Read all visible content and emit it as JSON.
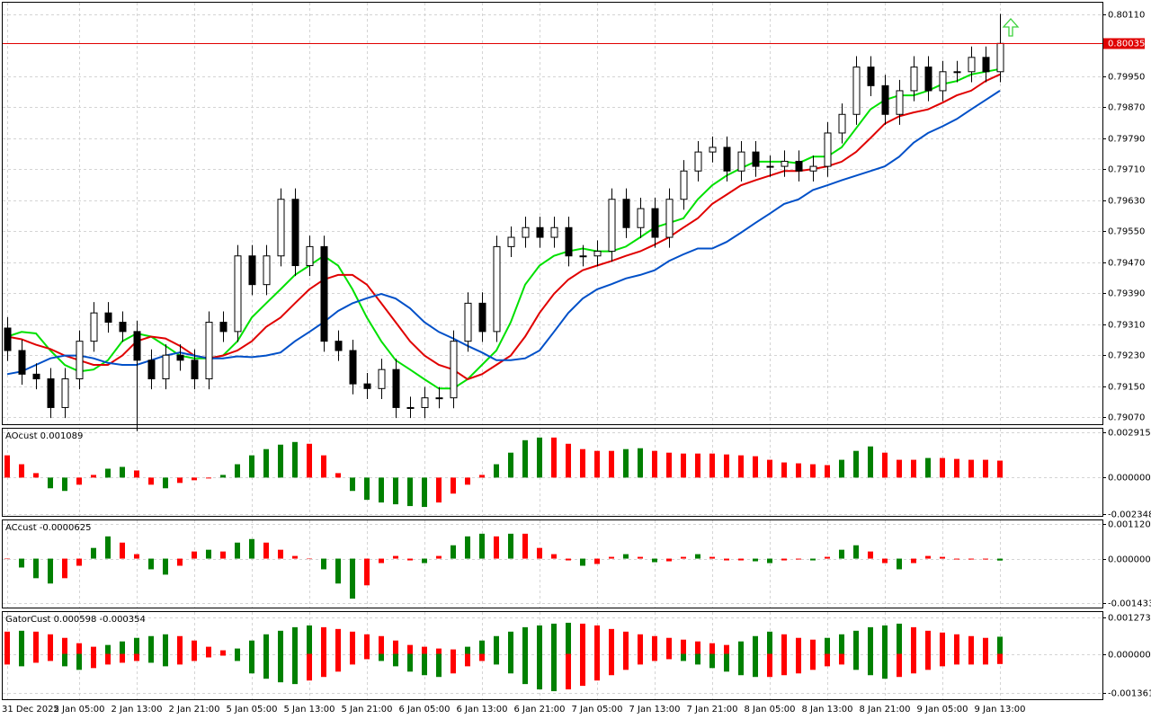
{
  "chart_data": [
    {
      "type": "candlestick",
      "categories": [
        "31 Dec 2025",
        null,
        null,
        null,
        null,
        "2 Jan 05:00",
        null,
        null,
        null,
        "2 Jan 13:00",
        null,
        null,
        null,
        "2 Jan 21:00",
        null,
        null,
        null,
        "5 Jan 05:00",
        null,
        null,
        null,
        "5 Jan 13:00",
        null,
        null,
        null,
        "5 Jan 21:00",
        null,
        null,
        null,
        "6 Jan 05:00",
        null,
        null,
        null,
        "6 Jan 13:00",
        null,
        null,
        null,
        "6 Jan 21:00",
        null,
        null,
        null,
        "7 Jan 05:00",
        null,
        null,
        null,
        "7 Jan 13:00",
        null,
        null,
        null,
        "7 Jan 21:00",
        null,
        null,
        null,
        "8 Jan 05:00",
        null,
        null,
        null,
        "8 Jan 13:00",
        null,
        null,
        null,
        "8 Jan 21:00",
        null,
        null,
        null,
        "9 Jan 05:00",
        null,
        null,
        null,
        "9 Jan 13:00"
      ],
      "open": [
        0.793,
        0.79242,
        0.79181,
        0.79169,
        0.79095,
        0.79169,
        0.79266,
        0.79339,
        0.79315,
        0.79291,
        0.79217,
        0.79169,
        0.7923,
        0.79217,
        0.79169,
        0.79315,
        0.79291,
        0.79486,
        0.79412,
        0.79486,
        0.79632,
        0.79461,
        0.7951,
        0.79266,
        0.79242,
        0.79156,
        0.79144,
        0.79193,
        0.79095,
        0.79095,
        0.7912,
        0.7912,
        0.79266,
        0.79364,
        0.79291,
        0.7951,
        0.79534,
        0.79559,
        0.79534,
        0.79559,
        0.79486,
        0.79486,
        0.79498,
        0.79632,
        0.79559,
        0.79608,
        0.79534,
        0.79632,
        0.79705,
        0.79754,
        0.79766,
        0.79705,
        0.79754,
        0.79717,
        0.79717,
        0.7973,
        0.79705,
        0.79717,
        0.79803,
        0.79851,
        0.79973,
        0.79925,
        0.79851,
        0.79912,
        0.79973,
        0.79912,
        0.79961,
        0.79961,
        0.79998,
        0.79961
      ],
      "high": [
        0.79328,
        0.7927,
        0.79209,
        0.79197,
        0.79197,
        0.79294,
        0.79367,
        0.79367,
        0.79343,
        0.79319,
        0.79245,
        0.79258,
        0.79258,
        0.79245,
        0.79343,
        0.79343,
        0.79514,
        0.79514,
        0.79514,
        0.7966,
        0.7966,
        0.79538,
        0.79538,
        0.79294,
        0.7927,
        0.79184,
        0.79221,
        0.79221,
        0.79123,
        0.79148,
        0.79148,
        0.79294,
        0.79392,
        0.79392,
        0.79538,
        0.79562,
        0.79587,
        0.79587,
        0.79587,
        0.79587,
        0.79514,
        0.79526,
        0.7966,
        0.7966,
        0.79636,
        0.79636,
        0.7966,
        0.79733,
        0.79782,
        0.79794,
        0.79794,
        0.79782,
        0.79782,
        0.79745,
        0.79758,
        0.79758,
        0.79745,
        0.79831,
        0.79879,
        0.80001,
        0.80001,
        0.79953,
        0.7994,
        0.80001,
        0.80001,
        0.79989,
        0.79989,
        0.80026,
        0.80026,
        0.8011
      ],
      "low": [
        0.79215,
        0.79154,
        0.79142,
        0.79068,
        0.79068,
        0.79142,
        0.79239,
        0.79288,
        0.79264,
        0.79034,
        0.79142,
        0.79142,
        0.7919,
        0.79142,
        0.79142,
        0.79264,
        0.79264,
        0.79385,
        0.79385,
        0.79459,
        0.79434,
        0.79434,
        0.79239,
        0.79215,
        0.79129,
        0.79117,
        0.79117,
        0.79068,
        0.79068,
        0.79068,
        0.79093,
        0.79093,
        0.79239,
        0.79264,
        0.79264,
        0.79483,
        0.79507,
        0.79507,
        0.79507,
        0.79459,
        0.79459,
        0.79459,
        0.79471,
        0.79532,
        0.79532,
        0.79507,
        0.79507,
        0.79605,
        0.79678,
        0.79727,
        0.79678,
        0.79678,
        0.7969,
        0.7969,
        0.7969,
        0.79678,
        0.79678,
        0.7969,
        0.79776,
        0.79824,
        0.79898,
        0.79824,
        0.79824,
        0.79885,
        0.79885,
        0.79885,
        0.79934,
        0.79934,
        0.79934,
        0.79934
      ],
      "close": [
        0.79242,
        0.79181,
        0.79169,
        0.79095,
        0.79169,
        0.79266,
        0.79339,
        0.79315,
        0.79291,
        0.79217,
        0.79169,
        0.7923,
        0.79217,
        0.79169,
        0.79315,
        0.79291,
        0.79486,
        0.79412,
        0.79486,
        0.79632,
        0.79461,
        0.7951,
        0.79266,
        0.79242,
        0.79156,
        0.79144,
        0.79193,
        0.79095,
        0.79095,
        0.7912,
        0.7912,
        0.79266,
        0.79364,
        0.79291,
        0.7951,
        0.79534,
        0.79559,
        0.79534,
        0.79559,
        0.79486,
        0.79486,
        0.79498,
        0.79632,
        0.79559,
        0.79608,
        0.79534,
        0.79632,
        0.79705,
        0.79754,
        0.79766,
        0.79705,
        0.79754,
        0.79717,
        0.79717,
        0.7973,
        0.79705,
        0.79717,
        0.79803,
        0.79851,
        0.79973,
        0.79925,
        0.79851,
        0.79912,
        0.79973,
        0.79912,
        0.79961,
        0.79961,
        0.79998,
        0.79961,
        0.80034
      ],
      "up_color": "#ffffff",
      "down_color": "#000000",
      "lines": [
        {
          "color": "#00e000",
          "values": [
            0.79278,
            0.7929,
            0.79286,
            0.79242,
            0.79205,
            0.79188,
            0.79193,
            0.79217,
            0.79266,
            0.79286,
            0.79278,
            0.79254,
            0.79229,
            0.79222,
            0.79222,
            0.79229,
            0.79266,
            0.79327,
            0.79364,
            0.794,
            0.79437,
            0.79461,
            0.79486,
            0.79461,
            0.794,
            0.79327,
            0.79266,
            0.79217,
            0.79193,
            0.79168,
            0.79144,
            0.79144,
            0.79168,
            0.79205,
            0.79242,
            0.79315,
            0.79412,
            0.79461,
            0.79486,
            0.79498,
            0.79505,
            0.79498,
            0.79498,
            0.7951,
            0.79534,
            0.79559,
            0.79571,
            0.79583,
            0.79632,
            0.79668,
            0.79693,
            0.79712,
            0.79729,
            0.79729,
            0.79729,
            0.79725,
            0.79742,
            0.79742,
            0.79766,
            0.79815,
            0.79864,
            0.79888,
            0.799,
            0.799,
            0.79912,
            0.79929,
            0.79937,
            0.79954,
            0.79961,
            0.79968
          ]
        },
        {
          "color": "#e00000",
          "values": [
            0.79278,
            0.79271,
            0.79257,
            0.79246,
            0.79229,
            0.79217,
            0.79205,
            0.79205,
            0.79229,
            0.79266,
            0.79278,
            0.79273,
            0.79254,
            0.79229,
            0.79222,
            0.79229,
            0.79242,
            0.79266,
            0.79303,
            0.79327,
            0.79364,
            0.794,
            0.79425,
            0.79437,
            0.79437,
            0.79412,
            0.79364,
            0.79315,
            0.79266,
            0.79229,
            0.79205,
            0.79193,
            0.79168,
            0.79181,
            0.79205,
            0.79229,
            0.79278,
            0.79339,
            0.79388,
            0.79425,
            0.79449,
            0.79461,
            0.79473,
            0.79486,
            0.79498,
            0.79515,
            0.79534,
            0.79559,
            0.79583,
            0.7962,
            0.79644,
            0.79668,
            0.79681,
            0.79693,
            0.79705,
            0.79705,
            0.7971,
            0.79717,
            0.79729,
            0.79754,
            0.7979,
            0.79827,
            0.79846,
            0.79856,
            0.79864,
            0.79881,
            0.799,
            0.79912,
            0.79937,
            0.79954
          ]
        },
        {
          "color": "#0050c8",
          "values": [
            0.79181,
            0.79188,
            0.79205,
            0.79222,
            0.79229,
            0.79229,
            0.79222,
            0.7921,
            0.79205,
            0.79205,
            0.79217,
            0.79229,
            0.79237,
            0.79229,
            0.79222,
            0.79222,
            0.79227,
            0.79225,
            0.79229,
            0.79237,
            0.79266,
            0.7929,
            0.79315,
            0.79344,
            0.79364,
            0.79377,
            0.79388,
            0.79376,
            0.79351,
            0.79315,
            0.7929,
            0.79273,
            0.79254,
            0.79237,
            0.79217,
            0.79217,
            0.79222,
            0.79242,
            0.7929,
            0.79339,
            0.79376,
            0.794,
            0.79413,
            0.79428,
            0.79437,
            0.79449,
            0.79473,
            0.7949,
            0.79505,
            0.79505,
            0.79522,
            0.79546,
            0.79571,
            0.79595,
            0.7962,
            0.79632,
            0.79656,
            0.79668,
            0.79681,
            0.79693,
            0.79705,
            0.79717,
            0.79742,
            0.79778,
            0.79803,
            0.7982,
            0.79839,
            0.79864,
            0.79888,
            0.79912
          ]
        }
      ],
      "current_price": {
        "value": 0.80035,
        "label": "0.80035"
      },
      "current_price_color": "#e00000",
      "ylim": [
        0.79052,
        0.80139
      ],
      "yticks": [
        {
          "value": 0.8011,
          "label": "0.80110"
        },
        {
          "value": 0.7995,
          "label": "0.79950"
        },
        {
          "value": 0.7987,
          "label": "0.79870"
        },
        {
          "value": 0.7979,
          "label": "0.79790"
        },
        {
          "value": 0.7971,
          "label": "0.79710"
        },
        {
          "value": 0.7963,
          "label": "0.79630"
        },
        {
          "value": 0.7955,
          "label": "0.79550"
        },
        {
          "value": 0.7947,
          "label": "0.79470"
        },
        {
          "value": 0.7939,
          "label": "0.79390"
        },
        {
          "value": 0.7931,
          "label": "0.79310"
        },
        {
          "value": 0.7923,
          "label": "0.79230"
        },
        {
          "value": 0.7915,
          "label": "0.79150"
        },
        {
          "value": 0.7907,
          "label": "0.79070"
        }
      ],
      "grid": true
    },
    {
      "type": "bar",
      "title": "AOcust 0.001089",
      "values": [
        0.001429,
        0.000857,
        0.000286,
        -0.000686,
        -0.000857,
        -0.000457,
        0.000171,
        0.000572,
        0.000686,
        0.000457,
        -0.000457,
        -0.000686,
        -0.000343,
        -0.000171,
        -5.7e-05,
        0.000171,
        0.000857,
        0.001429,
        0.001829,
        0.002115,
        0.002286,
        0.002172,
        0.001429,
        0.000286,
        -0.000857,
        -0.001429,
        -0.0016,
        -0.001715,
        -0.001829,
        -0.001886,
        -0.0016,
        -0.001029,
        -0.000457,
        0.000171,
        0.000857,
        0.0016,
        0.002401,
        0.002572,
        0.002572,
        0.002172,
        0.001829,
        0.001715,
        0.001715,
        0.001829,
        0.001886,
        0.001715,
        0.0016,
        0.001543,
        0.001543,
        0.001543,
        0.001486,
        0.001429,
        0.001372,
        0.001143,
        0.000972,
        0.000915,
        0.000857,
        0.0008,
        0.001143,
        0.001715,
        0.002001,
        0.0016,
        0.001143,
        0.001143,
        0.001258,
        0.001258,
        0.0012,
        0.001143,
        0.001143,
        0.001089
      ],
      "up_color": "#008000",
      "down_color": "#ff0000",
      "ylim": [
        -0.00246,
        0.00314
      ],
      "yticks": [
        {
          "value": 0.002915,
          "label": "0.002915"
        },
        {
          "value": 0,
          "label": "0.000000"
        },
        {
          "value": -0.002348,
          "label": "-0.002348"
        }
      ],
      "grid": true
    },
    {
      "type": "bar",
      "title": "ACcust -0.0000625",
      "values": [
        0,
        -0.000287,
        -0.000632,
        -0.000804,
        -0.000632,
        -0.00023,
        0.000345,
        0.000718,
        0.000517,
        0.000144,
        -0.000345,
        -0.000517,
        -0.00023,
        0.00023,
        0.000287,
        0.00023,
        0.000517,
        0.000632,
        0.000517,
        0.000287,
        8.6e-05,
        0,
        -0.000345,
        -0.000804,
        -0.001292,
        -0.000862,
        -0.000144,
        8.6e-05,
        -5.7e-05,
        -0.000144,
        8.6e-05,
        0.000431,
        0.000718,
        0.000804,
        0.000718,
        0.000804,
        0.000804,
        0.000345,
        0.000144,
        -5.7e-05,
        -0.00023,
        -0.000172,
        5.7e-05,
        0.000144,
        5.7e-05,
        -0.000115,
        -8.6e-05,
        5.7e-05,
        0.000144,
        5.7e-05,
        -5.7e-05,
        -5.7e-05,
        -8.6e-05,
        -0.000144,
        -5.7e-05,
        -2.9e-05,
        -5.7e-05,
        5.7e-05,
        0.000287,
        0.000431,
        0.00023,
        -0.000144,
        -0.000345,
        -0.000144,
        8.6e-05,
        5.7e-05,
        -2.9e-05,
        -2.9e-05,
        -2.9e-05,
        -6.25e-05
      ],
      "up_color": "#008000",
      "down_color": "#ff0000",
      "ylim": [
        -0.00158,
        0.001235
      ],
      "yticks": [
        {
          "value": 0.0011201,
          "label": "0.0011201"
        },
        {
          "value": 0,
          "label": "0.0000000"
        },
        {
          "value": -0.0014336,
          "label": "-0.0014336"
        }
      ],
      "grid": true
    },
    {
      "type": "gator",
      "title": "GatorCust 0.000598 -0.000354",
      "series": [
        {
          "values": [
            0.000775,
            0.000806,
            0.000775,
            0.000682,
            0.000558,
            0.000372,
            0.000248,
            0.00031,
            0.000434,
            0.000558,
            0.00062,
            0.000682,
            0.00062,
            0.000465,
            0.000248,
            0.000124,
            0.000186,
            0.000465,
            0.000682,
            0.000806,
            0.00093,
            0.000992,
            0.00093,
            0.000868,
            0.000775,
            0.000682,
            0.00062,
            0.000465,
            0.00031,
            0.000248,
            0.000186,
            0.000155,
            0.000248,
            0.000465,
            0.00062,
            0.000775,
            0.00093,
            0.000992,
            0.001054,
            0.001085,
            0.001054,
            0.000992,
            0.000868,
            0.000775,
            0.000682,
            0.00062,
            0.000558,
            0.000496,
            0.000434,
            0.000372,
            0.00031,
            0.000434,
            0.00062,
            0.000775,
            0.000682,
            0.000558,
            0.000496,
            0.000558,
            0.000682,
            0.000806,
            0.00093,
            0.000992,
            0.001054,
            0.00093,
            0.000806,
            0.000744,
            0.000682,
            0.00062,
            0.000558,
            0.000598
          ]
        },
        {
          "values": [
            -0.000372,
            -0.000434,
            -0.00031,
            -0.000248,
            -0.000434,
            -0.000558,
            -0.000496,
            -0.000372,
            -0.00031,
            -0.000248,
            -0.00031,
            -0.000434,
            -0.000372,
            -0.000248,
            -0.000124,
            -6.2e-05,
            -0.000248,
            -0.000682,
            -0.000868,
            -0.000992,
            -0.001054,
            -0.00093,
            -0.000806,
            -0.00062,
            -0.000372,
            -0.000186,
            -0.000248,
            -0.000434,
            -0.00062,
            -0.000744,
            -0.000806,
            -0.000682,
            -0.000434,
            -0.000248,
            -0.000372,
            -0.000682,
            -0.001054,
            -0.00124,
            -0.001302,
            -0.00124,
            -0.001116,
            -0.00093,
            -0.000744,
            -0.000558,
            -0.000372,
            -0.000248,
            -0.000186,
            -0.000248,
            -0.000372,
            -0.000496,
            -0.00062,
            -0.000744,
            -0.000806,
            -0.000806,
            -0.000744,
            -0.000682,
            -0.000558,
            -0.000434,
            -0.000372,
            -0.000558,
            -0.000744,
            -0.000868,
            -0.000806,
            -0.000682,
            -0.000558,
            -0.000434,
            -0.000372,
            -0.000372,
            -0.000372,
            -0.000354
          ]
        }
      ],
      "up_color": "#008000",
      "down_color": "#ff0000",
      "ylim": [
        -0.001583,
        0.001459
      ],
      "yticks": [
        {
          "value": 0.001273,
          "label": "0.001273"
        },
        {
          "value": 0,
          "label": "0.000000"
        },
        {
          "value": -0.001361,
          "label": "-0.001361"
        }
      ],
      "grid": true
    }
  ]
}
